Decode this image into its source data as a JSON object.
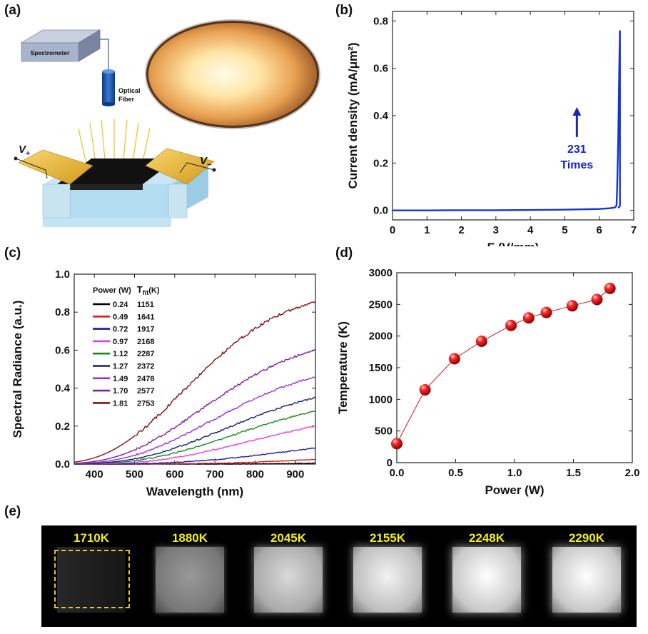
{
  "panel_labels": {
    "a": "(a)",
    "b": "(b)",
    "c": "(c)",
    "d": "(d)",
    "e": "(e)"
  },
  "panel_a": {
    "spectrometer": "Spectrometer",
    "optical_fiber_1": "Optical",
    "optical_fiber_2": "Fiber",
    "v_plus": "V",
    "v_plus_sub": "+",
    "v_minus": "V",
    "v_minus_sub": "−"
  },
  "chart_data": [
    {
      "id": "b",
      "type": "line",
      "xlabel": "F (V/mm)",
      "ylabel": "Current density (mA/μm²)",
      "xlim": [
        0,
        7
      ],
      "ylim": [
        -0.04,
        0.84
      ],
      "xticks": [
        "0",
        "1",
        "2",
        "3",
        "4",
        "5",
        "6",
        "7"
      ],
      "yticks": [
        "0.0",
        "0.2",
        "0.4",
        "0.6",
        "0.8"
      ],
      "annotation": [
        "231",
        "Times"
      ],
      "annotation_color": "#1a22c8",
      "series_color": "#1434d8",
      "x": [
        0,
        1,
        2,
        3,
        4,
        5,
        6,
        6.3,
        6.45,
        6.5,
        6.52,
        6.55,
        6.58,
        6.6,
        6.6,
        6.58,
        6.55
      ],
      "y": [
        0,
        0,
        0.001,
        0.001,
        0.002,
        0.003,
        0.006,
        0.009,
        0.012,
        0.02,
        0.1,
        0.3,
        0.6,
        0.76,
        0.02,
        0.015,
        0.01
      ]
    },
    {
      "id": "c",
      "type": "line",
      "xlabel": "Wavelength (nm)",
      "ylabel": "Spectral Radiance (a.u.)",
      "xlim": [
        350,
        950
      ],
      "ylim": [
        0,
        1.0
      ],
      "xticks": [
        "400",
        "500",
        "600",
        "700",
        "800",
        "900"
      ],
      "yticks": [
        "0.0",
        "0.2",
        "0.4",
        "0.6",
        "0.8",
        "1.0"
      ],
      "legend_header": [
        "Power (W)",
        "T",
        "fit",
        "(K)"
      ],
      "legend_position": "top-left",
      "series": [
        {
          "name": "0.24",
          "temp": "1151",
          "color": "#000000",
          "end": 0.005
        },
        {
          "name": "0.49",
          "temp": "1641",
          "color": "#e01818",
          "end": 0.025
        },
        {
          "name": "0.72",
          "temp": "1917",
          "color": "#1a1aa8",
          "end": 0.085
        },
        {
          "name": "0.97",
          "temp": "2168",
          "color": "#e040e0",
          "end": 0.2
        },
        {
          "name": "1.12",
          "temp": "2287",
          "color": "#1a8a1a",
          "end": 0.28
        },
        {
          "name": "1.27",
          "temp": "2372",
          "color": "#10206a",
          "end": 0.35
        },
        {
          "name": "1.49",
          "temp": "2478",
          "color": "#9a30d8",
          "end": 0.46
        },
        {
          "name": "1.70",
          "temp": "2577",
          "color": "#8a1aa0",
          "end": 0.6
        },
        {
          "name": "1.81",
          "temp": "2753",
          "color": "#8a1010",
          "end": 0.85
        }
      ]
    },
    {
      "id": "d",
      "type": "scatter",
      "xlabel": "Power (W)",
      "ylabel": "Temperature (K)",
      "xlim": [
        0,
        2.0
      ],
      "ylim": [
        0,
        3000
      ],
      "xticks": [
        "0.0",
        "0.5",
        "1.0",
        "1.5",
        "2.0"
      ],
      "yticks": [
        "0",
        "500",
        "1000",
        "1500",
        "2000",
        "2500",
        "3000"
      ],
      "color": "#e01010",
      "x": [
        0,
        0.24,
        0.49,
        0.72,
        0.97,
        1.12,
        1.27,
        1.49,
        1.7,
        1.81
      ],
      "y": [
        300,
        1151,
        1641,
        1917,
        2168,
        2287,
        2372,
        2478,
        2577,
        2753
      ]
    }
  ],
  "thermal_images": [
    {
      "label": "1710K",
      "brightness": 0.18
    },
    {
      "label": "1880K",
      "brightness": 0.6
    },
    {
      "label": "2045K",
      "brightness": 0.85
    },
    {
      "label": "2155K",
      "brightness": 0.95
    },
    {
      "label": "2248K",
      "brightness": 1.0
    },
    {
      "label": "2290K",
      "brightness": 1.0
    }
  ]
}
